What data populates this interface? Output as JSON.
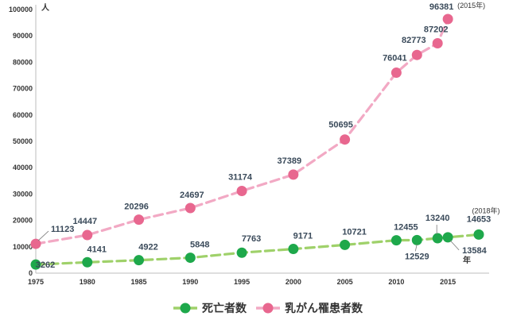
{
  "chart_data": {
    "type": "line",
    "ylim": [
      0,
      100000
    ],
    "xlim": [
      1975,
      2018
    ],
    "yticks": [
      0,
      10000,
      20000,
      30000,
      40000,
      50000,
      60000,
      70000,
      80000,
      90000,
      100000
    ],
    "xticks": [
      1975,
      1980,
      1985,
      1990,
      1995,
      2000,
      2005,
      2010,
      2015
    ],
    "y_unit": "人",
    "x_unit": "年",
    "grid": false,
    "legend_position": "bottom",
    "series": [
      {
        "name": "死亡者数",
        "color": "#1ea84b",
        "line_color": "#9fd16a",
        "x": [
          1975,
          1980,
          1985,
          1990,
          1995,
          2000,
          2005,
          2010,
          2012,
          2014,
          2015,
          2018
        ],
        "values": [
          3262,
          4141,
          4922,
          5848,
          7763,
          9171,
          10721,
          12455,
          12529,
          13240,
          13584,
          14653
        ]
      },
      {
        "name": "乳がん罹患者数",
        "color": "#e8678f",
        "line_color": "#f2a9c4",
        "x": [
          1975,
          1980,
          1985,
          1990,
          1995,
          2000,
          2005,
          2010,
          2012,
          2014,
          2015
        ],
        "values": [
          11123,
          14447,
          20296,
          24697,
          31174,
          37389,
          50695,
          76041,
          82773,
          87202,
          96381
        ]
      }
    ],
    "annotations": [
      {
        "text": "(2015年)",
        "series": 1,
        "index": 10
      },
      {
        "text": "(2018年)",
        "series": 0,
        "index": 11
      }
    ]
  }
}
